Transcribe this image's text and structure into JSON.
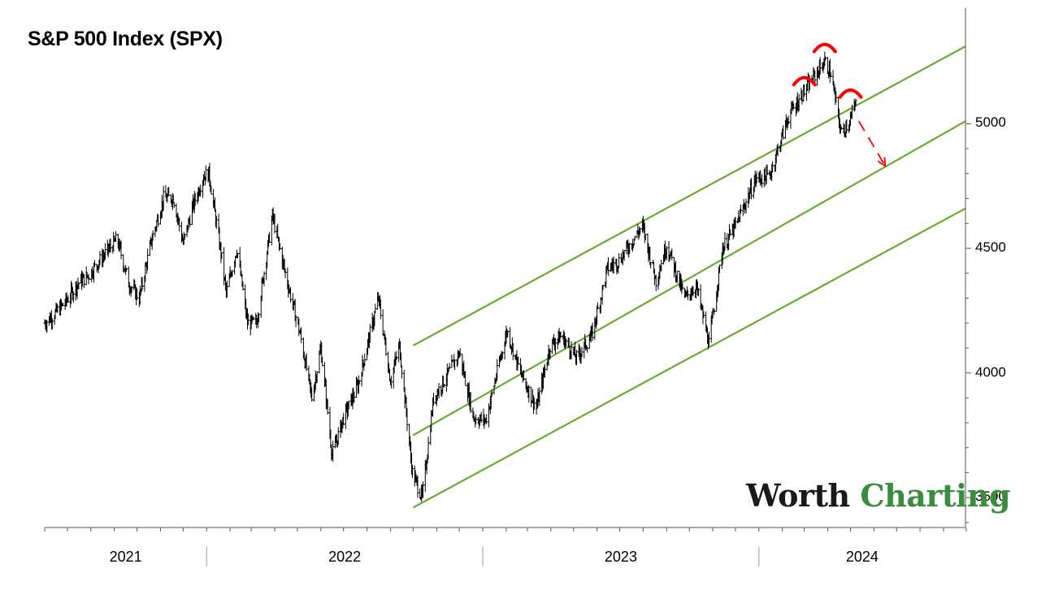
{
  "chart_data": {
    "type": "line",
    "title": "S&P 500 Index (SPX)",
    "xlabel": "",
    "ylabel": "",
    "y_ticks": [
      "3500",
      "4000",
      "4500",
      "5000"
    ],
    "x_labels": [
      "2021",
      "2022",
      "2023",
      "2024"
    ],
    "ylim": [
      3380,
      5470
    ],
    "x_range": [
      "2021-06-01",
      "2024-09-30"
    ],
    "grid": false,
    "style": "daily OHLC bars",
    "series": [
      {
        "points": [
          [
            "2021-06-01",
            4200
          ],
          [
            "2021-06-15",
            4240
          ],
          [
            "2021-06-30",
            4290
          ],
          [
            "2021-07-15",
            4360
          ],
          [
            "2021-07-30",
            4395
          ],
          [
            "2021-08-15",
            4460
          ],
          [
            "2021-08-31",
            4520
          ],
          [
            "2021-09-05",
            4535
          ],
          [
            "2021-09-20",
            4360
          ],
          [
            "2021-10-04",
            4300
          ],
          [
            "2021-10-20",
            4530
          ],
          [
            "2021-11-05",
            4700
          ],
          [
            "2021-11-18",
            4705
          ],
          [
            "2021-12-01",
            4520
          ],
          [
            "2021-12-15",
            4680
          ],
          [
            "2021-12-28",
            4790
          ],
          [
            "2022-01-04",
            4800
          ],
          [
            "2022-01-20",
            4480
          ],
          [
            "2022-01-27",
            4320
          ],
          [
            "2022-02-10",
            4500
          ],
          [
            "2022-02-24",
            4200
          ],
          [
            "2022-03-08",
            4200
          ],
          [
            "2022-03-29",
            4630
          ],
          [
            "2022-04-15",
            4400
          ],
          [
            "2022-05-05",
            4150
          ],
          [
            "2022-05-20",
            3900
          ],
          [
            "2022-06-01",
            4100
          ],
          [
            "2022-06-16",
            3670
          ],
          [
            "2022-07-01",
            3820
          ],
          [
            "2022-07-20",
            3950
          ],
          [
            "2022-08-16",
            4300
          ],
          [
            "2022-09-01",
            3970
          ],
          [
            "2022-09-13",
            4110
          ],
          [
            "2022-09-30",
            3600
          ],
          [
            "2022-10-13",
            3500
          ],
          [
            "2022-10-28",
            3900
          ],
          [
            "2022-11-15",
            3990
          ],
          [
            "2022-12-01",
            4080
          ],
          [
            "2022-12-20",
            3820
          ],
          [
            "2023-01-05",
            3810
          ],
          [
            "2023-02-02",
            4170
          ],
          [
            "2023-02-20",
            4000
          ],
          [
            "2023-03-13",
            3860
          ],
          [
            "2023-03-31",
            4110
          ],
          [
            "2023-04-15",
            4150
          ],
          [
            "2023-05-05",
            4060
          ],
          [
            "2023-05-25",
            4150
          ],
          [
            "2023-06-15",
            4420
          ],
          [
            "2023-06-30",
            4450
          ],
          [
            "2023-07-31",
            4590
          ],
          [
            "2023-08-18",
            4370
          ],
          [
            "2023-09-01",
            4515
          ],
          [
            "2023-09-25",
            4300
          ],
          [
            "2023-10-10",
            4350
          ],
          [
            "2023-10-27",
            4120
          ],
          [
            "2023-11-14",
            4500
          ],
          [
            "2023-12-01",
            4590
          ],
          [
            "2023-12-28",
            4780
          ],
          [
            "2024-01-15",
            4790
          ],
          [
            "2024-02-09",
            5030
          ],
          [
            "2024-03-01",
            5130
          ],
          [
            "2024-03-28",
            5250
          ],
          [
            "2024-04-05",
            5200
          ],
          [
            "2024-04-19",
            4960
          ],
          [
            "2024-05-01",
            5020
          ],
          [
            "2024-05-08",
            5080
          ]
        ]
      }
    ],
    "channel_lines": [
      {
        "from": [
          "2022-10-01",
          4110
        ],
        "to": [
          "2024-09-30",
          5310
        ]
      },
      {
        "from": [
          "2022-10-01",
          3750
        ],
        "to": [
          "2024-09-30",
          5010
        ]
      },
      {
        "from": [
          "2022-10-01",
          3460
        ],
        "to": [
          "2024-09-30",
          4660
        ]
      }
    ],
    "colors": {
      "price": "#000000",
      "channel": "#6aab2e",
      "annotation": "#ff0000",
      "brand_dark": "#1a1a1a",
      "brand_green": "#3a8c3f"
    }
  },
  "brand": {
    "part1": "Worth",
    "part2": "Charting"
  }
}
